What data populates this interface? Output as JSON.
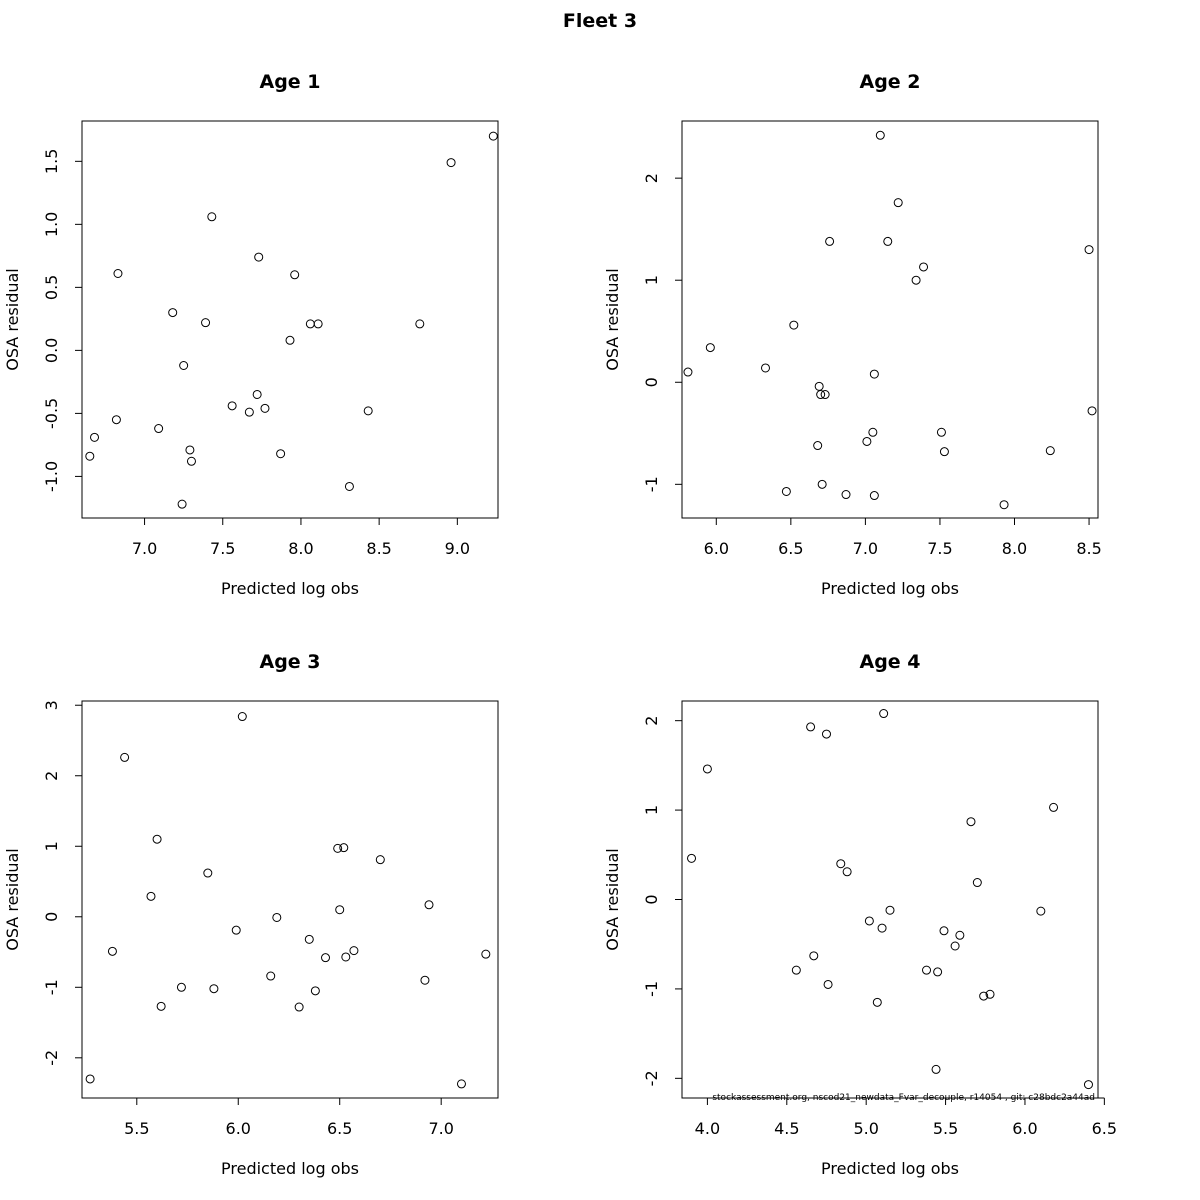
{
  "title": "Fleet 3",
  "credit": "stockassessment.org, nscod21_newdata_Fvar_decouple, r14054 , git: c28bdc2a44ad",
  "chart_data": [
    {
      "type": "scatter",
      "title": "Age 1",
      "xlabel": "Predicted log obs",
      "ylabel": "OSA residual",
      "xlim": [
        6.6,
        9.26
      ],
      "ylim": [
        -1.33,
        1.82
      ],
      "xticks": [
        7.0,
        7.5,
        8.0,
        8.5,
        9.0
      ],
      "xtick_labels": [
        "7.0",
        "7.5",
        "8.0",
        "8.5",
        "9.0"
      ],
      "yticks": [
        -1.0,
        -0.5,
        0.0,
        0.5,
        1.0,
        1.5
      ],
      "ytick_labels": [
        "-1.0",
        "-0.5",
        "0.0",
        "0.5",
        "1.0",
        "1.5"
      ],
      "x": [
        6.65,
        6.68,
        6.82,
        6.83,
        7.09,
        7.18,
        7.24,
        7.25,
        7.29,
        7.3,
        7.39,
        7.43,
        7.56,
        7.67,
        7.72,
        7.73,
        7.77,
        7.87,
        7.93,
        7.96,
        8.06,
        8.11,
        8.31,
        8.43,
        8.76,
        8.96,
        9.23
      ],
      "y": [
        -0.84,
        -0.69,
        -0.55,
        0.61,
        -0.62,
        0.3,
        -1.22,
        -0.12,
        -0.79,
        -0.88,
        0.22,
        1.06,
        -0.44,
        -0.49,
        -0.35,
        0.74,
        -0.46,
        -0.82,
        0.08,
        0.6,
        0.21,
        0.21,
        -1.08,
        -0.48,
        0.21,
        1.49,
        1.7
      ]
    },
    {
      "type": "scatter",
      "title": "Age 2",
      "xlabel": "Predicted log obs",
      "ylabel": "OSA residual",
      "xlim": [
        5.77,
        8.56
      ],
      "ylim": [
        -1.33,
        2.56
      ],
      "xticks": [
        6.0,
        6.5,
        7.0,
        7.5,
        8.0,
        8.5
      ],
      "xtick_labels": [
        "6.0",
        "6.5",
        "7.0",
        "7.5",
        "8.0",
        "8.5"
      ],
      "yticks": [
        -1,
        0,
        1,
        2
      ],
      "ytick_labels": [
        "-1",
        "0",
        "1",
        "2"
      ],
      "x": [
        5.81,
        5.96,
        6.33,
        6.47,
        6.52,
        6.68,
        6.69,
        6.7,
        6.71,
        6.73,
        6.76,
        6.87,
        7.01,
        7.05,
        7.06,
        7.06,
        7.1,
        7.15,
        7.22,
        7.34,
        7.39,
        7.51,
        7.53,
        7.93,
        8.24,
        8.5,
        8.52
      ],
      "y": [
        0.1,
        0.34,
        0.14,
        -1.07,
        0.56,
        -0.62,
        -0.04,
        -0.12,
        -1.0,
        -0.12,
        1.38,
        -1.1,
        -0.58,
        -0.49,
        -1.11,
        0.08,
        2.42,
        1.38,
        1.76,
        1.0,
        1.13,
        -0.49,
        -0.68,
        -1.2,
        -0.67,
        1.3,
        -0.28
      ]
    },
    {
      "type": "scatter",
      "title": "Age 3",
      "xlabel": "Predicted log obs",
      "ylabel": "OSA residual",
      "xlim": [
        5.23,
        7.28
      ],
      "ylim": [
        -2.57,
        3.06
      ],
      "xticks": [
        5.5,
        6.0,
        6.5,
        7.0
      ],
      "xtick_labels": [
        "5.5",
        "6.0",
        "6.5",
        "7.0"
      ],
      "yticks": [
        -2,
        -1,
        0,
        1,
        2,
        3
      ],
      "ytick_labels": [
        "-2",
        "-1",
        "0",
        "1",
        "2",
        "3"
      ],
      "x": [
        5.27,
        5.38,
        5.44,
        5.57,
        5.6,
        5.62,
        5.72,
        5.85,
        5.88,
        5.99,
        6.02,
        6.16,
        6.19,
        6.3,
        6.35,
        6.38,
        6.43,
        6.49,
        6.5,
        6.52,
        6.53,
        6.57,
        6.7,
        6.92,
        6.94,
        7.1,
        7.22
      ],
      "y": [
        -2.3,
        -0.49,
        2.26,
        0.29,
        1.1,
        -1.27,
        -1.0,
        0.62,
        -1.02,
        -0.19,
        2.84,
        -0.84,
        -0.01,
        -1.28,
        -0.32,
        -1.05,
        -0.58,
        0.97,
        0.1,
        0.98,
        -0.57,
        -0.48,
        0.81,
        -0.9,
        0.17,
        -2.37,
        -0.53
      ]
    },
    {
      "type": "scatter",
      "title": "Age 4",
      "xlabel": "Predicted log obs",
      "ylabel": "OSA residual",
      "xlim": [
        3.84,
        6.46
      ],
      "ylim": [
        -2.22,
        2.22
      ],
      "xticks": [
        4.0,
        4.5,
        5.0,
        5.5,
        6.0,
        6.5
      ],
      "xtick_labels": [
        "4.0",
        "4.5",
        "5.0",
        "5.5",
        "6.0",
        "6.5"
      ],
      "yticks": [
        -2,
        -1,
        0,
        1,
        2
      ],
      "ytick_labels": [
        "-2",
        "-1",
        "0",
        "1",
        "2"
      ],
      "x": [
        3.9,
        4.0,
        4.56,
        4.65,
        4.67,
        4.75,
        4.76,
        4.84,
        4.88,
        5.02,
        5.07,
        5.1,
        5.11,
        5.15,
        5.38,
        5.44,
        5.45,
        5.49,
        5.56,
        5.59,
        5.66,
        5.7,
        5.74,
        5.78,
        6.1,
        6.18,
        6.4
      ],
      "y": [
        0.46,
        1.46,
        -0.79,
        1.93,
        -0.63,
        1.85,
        -0.95,
        0.4,
        0.31,
        -0.24,
        -1.15,
        -0.32,
        2.08,
        -0.12,
        -0.79,
        -1.9,
        -0.81,
        -0.35,
        -0.52,
        -0.4,
        0.87,
        0.19,
        -1.08,
        -1.06,
        -0.13,
        1.03,
        -2.07
      ]
    }
  ]
}
